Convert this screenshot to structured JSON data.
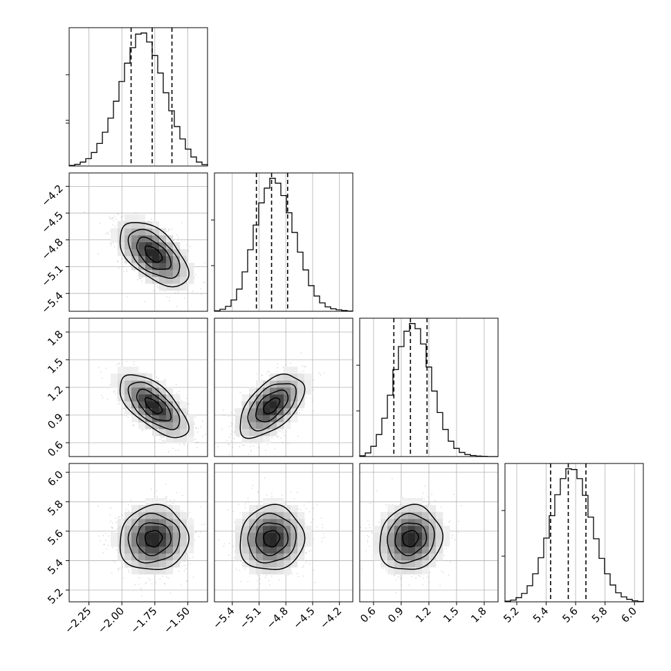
{
  "chart_data": {
    "type": "corner",
    "grid": true,
    "parameters": [
      {
        "range": [
          -2.4,
          -1.35
        ],
        "ticks": [
          -2.25,
          -2.0,
          -1.75,
          -1.5
        ],
        "tick_labels": [
          "−2.25",
          "−2.00",
          "−1.75",
          "−1.50"
        ],
        "mean": -1.76,
        "sigma": 0.13,
        "quantiles": [
          -1.93,
          -1.77,
          -1.62
        ]
      },
      {
        "range": [
          -5.6,
          -4.05
        ],
        "ticks": [
          -5.4,
          -5.1,
          -4.8,
          -4.5,
          -4.2
        ],
        "tick_labels": [
          "−5.4",
          "−5.1",
          "−4.8",
          "−4.5",
          "−4.2"
        ],
        "mean": -4.96,
        "sigma": 0.18,
        "quantiles": [
          -5.13,
          -4.96,
          -4.78
        ]
      },
      {
        "range": [
          0.45,
          1.95
        ],
        "ticks": [
          0.6,
          0.9,
          1.2,
          1.5,
          1.8
        ],
        "tick_labels": [
          "0.6",
          "0.9",
          "1.2",
          "1.5",
          "1.8"
        ],
        "mean": 1.0,
        "sigma": 0.17,
        "quantiles": [
          0.82,
          1.0,
          1.18
        ]
      },
      {
        "range": [
          5.12,
          6.06
        ],
        "ticks": [
          5.2,
          5.4,
          5.6,
          5.8,
          6.0
        ],
        "tick_labels": [
          "5.2",
          "5.4",
          "5.6",
          "5.8",
          "6.0"
        ],
        "mean": 5.55,
        "sigma": 0.11,
        "quantiles": [
          5.43,
          5.55,
          5.67
        ]
      }
    ],
    "histograms": [
      {
        "param": 0,
        "edges": [
          -2.4,
          -1.35
        ],
        "counts": [
          2,
          6,
          14,
          26,
          48,
          80,
          120,
          170,
          230,
          300,
          365,
          420,
          468,
          472,
          440,
          392,
          330,
          260,
          196,
          140,
          96,
          60,
          32,
          14,
          5
        ]
      },
      {
        "param": 1,
        "edges": [
          -5.6,
          -4.05
        ],
        "counts": [
          2,
          8,
          20,
          46,
          90,
          160,
          250,
          350,
          440,
          500,
          540,
          520,
          470,
          400,
          320,
          240,
          168,
          104,
          62,
          34,
          18,
          10,
          6,
          3,
          1
        ]
      },
      {
        "param": 2,
        "edges": [
          0.45,
          1.95
        ],
        "counts": [
          3,
          14,
          40,
          86,
          150,
          240,
          340,
          430,
          490,
          520,
          500,
          440,
          350,
          256,
          172,
          106,
          60,
          32,
          16,
          8,
          4,
          2,
          1,
          0,
          0
        ]
      },
      {
        "param": 3,
        "edges": [
          5.12,
          6.06
        ],
        "counts": [
          2,
          5,
          12,
          24,
          46,
          80,
          126,
          182,
          246,
          306,
          352,
          380,
          378,
          352,
          304,
          242,
          180,
          124,
          80,
          48,
          26,
          14,
          7,
          3,
          1
        ]
      }
    ],
    "correlations": {
      "1,0": -0.55,
      "2,0": -0.65,
      "2,1": 0.55,
      "3,0": 0.05,
      "3,1": 0.05,
      "3,2": 0.1
    },
    "contour_levels_sigma": [
      0.5,
      1.0,
      1.5,
      2.0
    ],
    "colors": {
      "points": "#9a9a9a",
      "density": "#000000",
      "lines": "#000000",
      "grid": "#b0b0b0"
    }
  }
}
